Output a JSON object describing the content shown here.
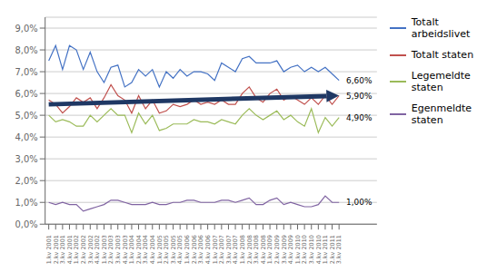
{
  "chart_data": {
    "type": "line",
    "categories": [
      "1.kv\n2001",
      "2.kv\n2001",
      "3.kv\n2001",
      "4.kv\n2001",
      "1.kv\n2002",
      "2.kv\n2002",
      "3.kv\n2002",
      "4.kv\n2002",
      "1.kv\n2003",
      "2.kv\n2003",
      "3.kv\n2003",
      "4.kv\n2003",
      "1.kv\n2004",
      "2.kv\n2004",
      "3.kv\n2004",
      "4.kv\n2004",
      "1.kv\n2005",
      "2.kv\n2005",
      "3.kv\n2005",
      "4.kv\n2005",
      "1.kv\n2006",
      "2.kv\n2006",
      "3.kv\n2006",
      "4.kv\n2006",
      "1.kv\n2007",
      "2.kv\n2007",
      "3.kv\n2007",
      "4.kv\n2007",
      "1.kv\n2008",
      "2.kv\n2008",
      "3.kv\n2008",
      "4.kv\n2008",
      "1.kv\n2009",
      "2.kv\n2009",
      "3.kv\n2009",
      "4.kv\n2009",
      "1.kv\n2010",
      "2.kv\n2010",
      "3.kv\n2010",
      "4.kv\n2010",
      "1.kv\n2011",
      "2.kv\n2011",
      "3.kv\n2011"
    ],
    "series": [
      {
        "name": "Totalt\narbeidslivet",
        "color": "#4472C4",
        "values": [
          7.5,
          8.2,
          7.1,
          8.2,
          8.0,
          7.1,
          7.9,
          7.0,
          6.5,
          7.2,
          7.3,
          6.3,
          6.5,
          7.1,
          6.8,
          7.1,
          6.3,
          7.0,
          6.7,
          7.1,
          6.8,
          7.0,
          7.0,
          6.9,
          6.6,
          7.4,
          7.2,
          7.0,
          7.6,
          7.7,
          7.4,
          7.4,
          7.4,
          7.5,
          7.0,
          7.2,
          7.3,
          7.0,
          7.2,
          7.0,
          7.2,
          6.9,
          6.6
        ]
      },
      {
        "name": "Totalt staten",
        "color": "#C0504D",
        "values": [
          5.7,
          5.5,
          5.1,
          5.4,
          5.8,
          5.6,
          5.8,
          5.3,
          5.8,
          6.4,
          5.9,
          5.7,
          5.1,
          5.9,
          5.3,
          5.7,
          5.1,
          5.2,
          5.5,
          5.4,
          5.5,
          5.7,
          5.5,
          5.6,
          5.5,
          5.7,
          5.5,
          5.5,
          6.0,
          6.3,
          5.8,
          5.6,
          6.0,
          6.2,
          5.7,
          5.9,
          5.7,
          5.5,
          5.8,
          5.5,
          5.9,
          5.5,
          5.9
        ]
      },
      {
        "name": "Legemeldte\nstaten",
        "color": "#9BBB59",
        "values": [
          5.0,
          4.7,
          4.8,
          4.7,
          4.5,
          4.5,
          5.0,
          4.7,
          5.0,
          5.3,
          5.0,
          5.0,
          4.2,
          5.1,
          4.6,
          5.0,
          4.3,
          4.4,
          4.6,
          4.6,
          4.6,
          4.8,
          4.7,
          4.7,
          4.6,
          4.8,
          4.7,
          4.6,
          5.0,
          5.3,
          5.0,
          4.8,
          5.0,
          5.2,
          4.8,
          5.0,
          4.7,
          4.5,
          5.3,
          4.2,
          4.9,
          4.5,
          4.9
        ]
      },
      {
        "name": "Egenmeldte\nstaten",
        "color": "#8064A2",
        "values": [
          1.0,
          0.9,
          1.0,
          0.9,
          0.9,
          0.6,
          0.7,
          0.8,
          0.9,
          1.1,
          1.1,
          1.0,
          0.9,
          0.9,
          0.9,
          1.0,
          0.9,
          0.9,
          1.0,
          1.0,
          1.1,
          1.1,
          1.0,
          1.0,
          1.0,
          1.1,
          1.1,
          1.0,
          1.1,
          1.2,
          0.9,
          0.9,
          1.1,
          1.2,
          0.9,
          1.0,
          0.9,
          0.8,
          0.8,
          0.9,
          1.3,
          1.0,
          1.0
        ]
      }
    ],
    "ylim": [
      0.0,
      9.5
    ],
    "yticks": [
      {
        "value": 0.0,
        "label": "0,0%"
      },
      {
        "value": 1.0,
        "label": "1,0%"
      },
      {
        "value": 2.0,
        "label": "2,0%"
      },
      {
        "value": 3.0,
        "label": "3,0%"
      },
      {
        "value": 4.0,
        "label": "4,0%"
      },
      {
        "value": 5.0,
        "label": "5,0%"
      },
      {
        "value": 6.0,
        "label": "6,0%"
      },
      {
        "value": 7.0,
        "label": "7,0%"
      },
      {
        "value": 8.0,
        "label": "8,0%"
      },
      {
        "value": 9.0,
        "label": "9,0%"
      }
    ],
    "grid": true,
    "legend": "right",
    "annotations": [
      {
        "text": "6,60%",
        "y": 6.6
      },
      {
        "text": "5,90%",
        "y": 5.9
      },
      {
        "text": "4,90%",
        "y": 4.9
      },
      {
        "text": "1,00%",
        "y": 1.0
      }
    ],
    "arrow": {
      "start": 5.5,
      "end": 5.9,
      "color": "#1F3864"
    }
  }
}
